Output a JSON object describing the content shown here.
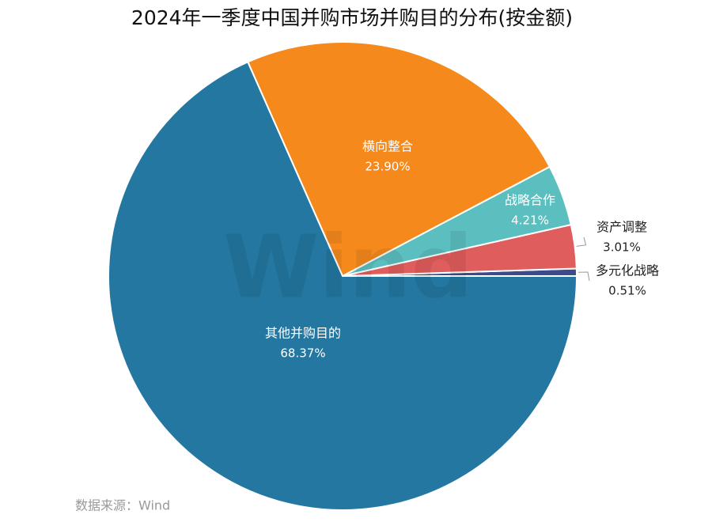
{
  "chart_data": {
    "type": "pie",
    "title": "2024年一季度中国并购市场并购目的分布(按金额)",
    "categories": [
      "多元化战略",
      "资产调整",
      "战略合作",
      "横向整合",
      "其他并购目的"
    ],
    "values": [
      0.51,
      3.01,
      4.21,
      23.9,
      68.37
    ],
    "value_labels": [
      "0.51%",
      "3.01%",
      "4.21%",
      "23.90%",
      "68.37%"
    ],
    "colors": [
      "#3d4b8c",
      "#e05d5d",
      "#5cbfbf",
      "#f5891c",
      "#2477a1"
    ],
    "watermark": "Wind",
    "source": "数据来源：Wind"
  }
}
